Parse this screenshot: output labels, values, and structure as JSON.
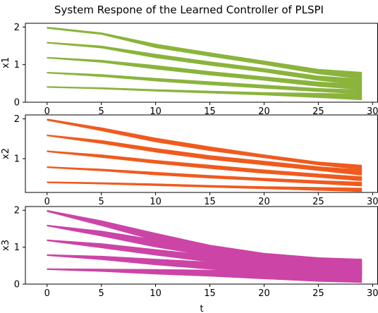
{
  "chart_data": {
    "type": "area",
    "title": "System Respone of the Learned Controller of PLSPI",
    "xlabel": "t",
    "xlim": [
      -2,
      30.5
    ],
    "xticks": [
      0,
      5,
      10,
      15,
      20,
      25,
      30
    ],
    "panels": [
      {
        "ylabel": "x1",
        "ylim": [
          0,
          2.1
        ],
        "yticks": [
          0,
          1,
          2
        ],
        "color": "#8ab43c",
        "bands": [
          {
            "x": [
              0,
              5,
              10,
              15,
              20,
              25,
              29
            ],
            "upper": [
              2.0,
              1.85,
              1.55,
              1.32,
              1.1,
              0.88,
              0.8
            ],
            "lower": [
              1.96,
              1.8,
              1.45,
              1.22,
              1.0,
              0.75,
              0.62
            ]
          },
          {
            "x": [
              0,
              5,
              10,
              15,
              20,
              25,
              29
            ],
            "upper": [
              1.6,
              1.5,
              1.28,
              1.08,
              0.9,
              0.7,
              0.62
            ],
            "lower": [
              1.57,
              1.44,
              1.18,
              0.98,
              0.8,
              0.58,
              0.46
            ]
          },
          {
            "x": [
              0,
              5,
              10,
              15,
              20,
              25,
              29
            ],
            "upper": [
              1.2,
              1.12,
              0.98,
              0.82,
              0.68,
              0.54,
              0.48
            ],
            "lower": [
              1.17,
              1.06,
              0.88,
              0.72,
              0.58,
              0.42,
              0.33
            ]
          },
          {
            "x": [
              0,
              5,
              10,
              15,
              20,
              25,
              29
            ],
            "upper": [
              0.8,
              0.74,
              0.64,
              0.55,
              0.46,
              0.37,
              0.33
            ],
            "lower": [
              0.77,
              0.68,
              0.56,
              0.46,
              0.37,
              0.28,
              0.22
            ]
          },
          {
            "x": [
              0,
              5,
              10,
              15,
              20,
              25,
              29
            ],
            "upper": [
              0.42,
              0.39,
              0.34,
              0.3,
              0.26,
              0.24,
              0.22
            ],
            "lower": [
              0.39,
              0.35,
              0.29,
              0.24,
              0.19,
              0.12,
              0.06
            ]
          }
        ]
      },
      {
        "ylabel": "x2",
        "ylim": [
          0.15,
          2.1
        ],
        "yticks": [
          1,
          2
        ],
        "color": "#f05a1e",
        "bands": [
          {
            "x": [
              0,
              5,
              10,
              15,
              20,
              25,
              29
            ],
            "upper": [
              2.0,
              1.78,
              1.52,
              1.3,
              1.1,
              0.92,
              0.84
            ],
            "lower": [
              1.96,
              1.7,
              1.42,
              1.2,
              1.02,
              0.84,
              0.72
            ]
          },
          {
            "x": [
              0,
              5,
              10,
              15,
              20,
              25,
              29
            ],
            "upper": [
              1.6,
              1.46,
              1.26,
              1.08,
              0.94,
              0.8,
              0.72
            ],
            "lower": [
              1.57,
              1.38,
              1.16,
              0.98,
              0.84,
              0.7,
              0.58
            ]
          },
          {
            "x": [
              0,
              5,
              10,
              15,
              20,
              25,
              29
            ],
            "upper": [
              1.2,
              1.1,
              0.96,
              0.84,
              0.72,
              0.62,
              0.55
            ],
            "lower": [
              1.17,
              1.03,
              0.88,
              0.75,
              0.63,
              0.53,
              0.44
            ]
          },
          {
            "x": [
              0,
              5,
              10,
              15,
              20,
              25,
              29
            ],
            "upper": [
              0.8,
              0.74,
              0.66,
              0.58,
              0.51,
              0.45,
              0.41
            ],
            "lower": [
              0.77,
              0.69,
              0.59,
              0.51,
              0.44,
              0.37,
              0.31
            ]
          },
          {
            "x": [
              0,
              5,
              10,
              15,
              20,
              25,
              29
            ],
            "upper": [
              0.42,
              0.4,
              0.37,
              0.33,
              0.3,
              0.28,
              0.26
            ],
            "lower": [
              0.39,
              0.36,
              0.32,
              0.28,
              0.24,
              0.2,
              0.17
            ]
          }
        ]
      },
      {
        "ylabel": "x3",
        "ylim": [
          0,
          2.1
        ],
        "yticks": [
          0,
          1,
          2
        ],
        "color": "#cc44a6",
        "bands": [
          {
            "x": [
              0,
              5,
              10,
              15,
              20,
              25,
              29
            ],
            "upper": [
              2.0,
              1.72,
              1.38,
              1.06,
              0.84,
              0.72,
              0.68
            ],
            "lower": [
              1.96,
              1.58,
              1.18,
              0.88,
              0.64,
              0.46,
              0.36
            ]
          },
          {
            "x": [
              0,
              5,
              10,
              15,
              20,
              25,
              29
            ],
            "upper": [
              1.6,
              1.44,
              1.2,
              0.96,
              0.78,
              0.68,
              0.64
            ],
            "lower": [
              1.57,
              1.3,
              1.0,
              0.76,
              0.56,
              0.4,
              0.3
            ]
          },
          {
            "x": [
              0,
              5,
              10,
              15,
              20,
              25,
              29
            ],
            "upper": [
              1.2,
              1.1,
              0.94,
              0.78,
              0.66,
              0.6,
              0.58
            ],
            "lower": [
              1.17,
              0.98,
              0.78,
              0.6,
              0.44,
              0.3,
              0.22
            ]
          },
          {
            "x": [
              0,
              5,
              10,
              15,
              20,
              25,
              29
            ],
            "upper": [
              0.8,
              0.76,
              0.68,
              0.6,
              0.54,
              0.52,
              0.5
            ],
            "lower": [
              0.77,
              0.66,
              0.52,
              0.4,
              0.3,
              0.2,
              0.14
            ]
          },
          {
            "x": [
              0,
              5,
              10,
              15,
              20,
              25,
              29
            ],
            "upper": [
              0.42,
              0.41,
              0.4,
              0.38,
              0.36,
              0.36,
              0.35
            ],
            "lower": [
              0.39,
              0.34,
              0.27,
              0.21,
              0.14,
              0.07,
              0.04
            ]
          }
        ]
      }
    ]
  }
}
